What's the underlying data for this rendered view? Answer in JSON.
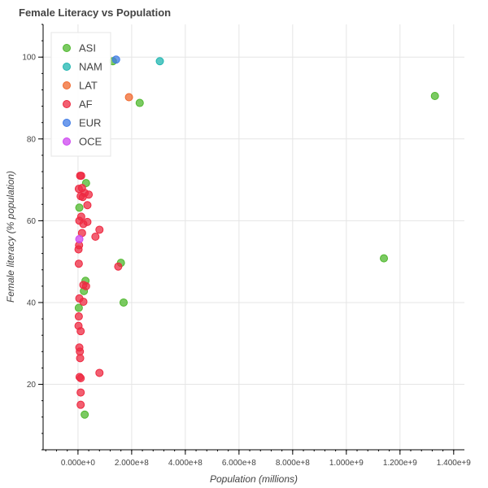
{
  "chart_data": {
    "type": "scatter",
    "title": "Female Literacy vs Population",
    "xlabel": "Population (millions)",
    "ylabel": "Female literacy (% population)",
    "xlim": [
      -130000000,
      1440000000
    ],
    "ylim": [
      4,
      108
    ],
    "x_ticks": [
      0,
      200000000,
      400000000,
      600000000,
      800000000,
      1000000000,
      1200000000,
      1400000000
    ],
    "x_tick_labels": [
      "0.000e+0",
      "2.000e+8",
      "4.000e+8",
      "6.000e+8",
      "8.000e+8",
      "1.000e+9",
      "1.200e+9",
      "1.400e+9"
    ],
    "y_ticks": [
      20,
      40,
      60,
      80,
      100
    ],
    "y_tick_labels": [
      "20",
      "40",
      "60",
      "80",
      "100"
    ],
    "grid": true,
    "legend_position": "top-left",
    "series": [
      {
        "name": "ASI",
        "color": "#4fb82e",
        "points": [
          [
            1330000000,
            90.5
          ],
          [
            1140000000,
            50.8
          ],
          [
            230000000,
            88.8
          ],
          [
            170000000,
            40.0
          ],
          [
            160000000,
            49.7
          ],
          [
            130000000,
            99.0
          ],
          [
            30000000,
            69.2
          ],
          [
            28000000,
            45.3
          ],
          [
            25000000,
            12.6
          ],
          [
            22000000,
            42.8
          ],
          [
            5000000,
            63.2
          ],
          [
            3000000,
            38.7
          ]
        ]
      },
      {
        "name": "NAM",
        "color": "#1fb5b0",
        "points": [
          [
            305000000,
            99.0
          ]
        ]
      },
      {
        "name": "LAT",
        "color": "#f0682d",
        "points": [
          [
            190000000,
            90.2
          ]
        ]
      },
      {
        "name": "AF",
        "color": "#ee2a42",
        "points": [
          [
            80000000,
            57.8
          ],
          [
            150000000,
            48.8
          ],
          [
            80000000,
            22.8
          ],
          [
            65000000,
            56.1
          ],
          [
            40000000,
            66.4
          ],
          [
            35000000,
            63.8
          ],
          [
            35000000,
            59.7
          ],
          [
            30000000,
            44.0
          ],
          [
            25000000,
            66.8
          ],
          [
            20000000,
            44.3
          ],
          [
            20000000,
            59.2
          ],
          [
            20000000,
            40.2
          ],
          [
            18000000,
            65.8
          ],
          [
            15000000,
            68.0
          ],
          [
            15000000,
            57.0
          ],
          [
            12000000,
            71.0
          ],
          [
            12000000,
            61.0
          ],
          [
            10000000,
            66.0
          ],
          [
            10000000,
            33.0
          ],
          [
            10000000,
            15.0
          ],
          [
            10000000,
            18.0
          ],
          [
            10000000,
            21.5
          ],
          [
            8000000,
            71.0
          ],
          [
            8000000,
            26.4
          ],
          [
            7000000,
            28.0
          ],
          [
            6000000,
            21.8
          ],
          [
            5000000,
            60.0
          ],
          [
            5000000,
            41.0
          ],
          [
            5000000,
            29.0
          ],
          [
            4000000,
            54.0
          ],
          [
            3000000,
            67.8
          ],
          [
            3000000,
            49.5
          ],
          [
            3000000,
            36.6
          ],
          [
            2000000,
            53.0
          ],
          [
            2000000,
            34.3
          ]
        ]
      },
      {
        "name": "EUR",
        "color": "#3f7be6",
        "points": [
          [
            142000000,
            99.4
          ]
        ]
      },
      {
        "name": "OCE",
        "color": "#cd45f0",
        "points": [
          [
            5000000,
            55.5
          ]
        ]
      }
    ]
  }
}
